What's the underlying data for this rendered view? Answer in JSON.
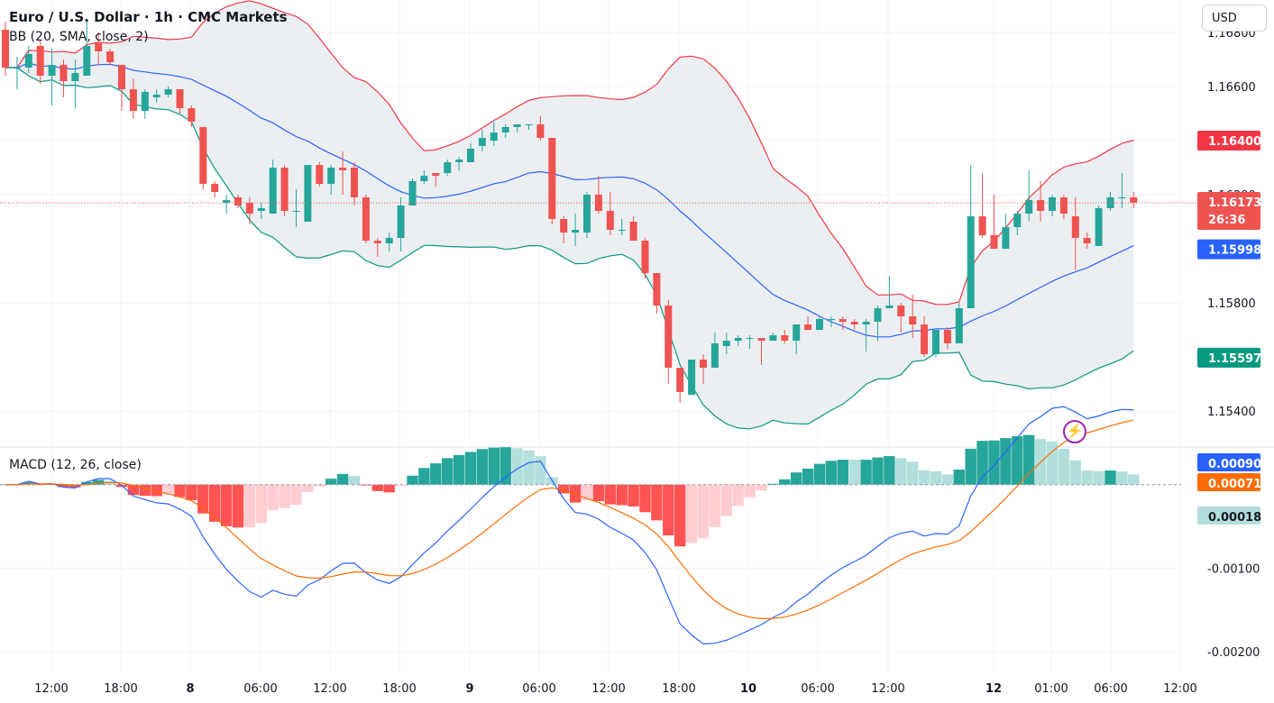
{
  "header": {
    "title": "Euro / U.S. Dollar · 1h · CMC Markets",
    "bb_label": "BB (20, SMA, close, 2)",
    "macd_label": "MACD (12, 26, close)"
  },
  "currency_button": "USD",
  "alert_icon": "bolt-icon",
  "colors": {
    "up": "#26a69a",
    "down": "#ef5350",
    "bb_upper": "#f23645",
    "bb_basis": "#2962ff",
    "bb_lower": "#089981",
    "bb_fill": "#e3e8ec",
    "macd_line": "#2962ff",
    "signal_line": "#ff6d00",
    "hist_pos_strong": "#26a69a",
    "hist_pos_weak": "#b2dfdb",
    "hist_neg_strong": "#ff5252",
    "hist_neg_weak": "#ffcdd2"
  },
  "chart_data": [
    {
      "type": "candlestick",
      "title": "Euro / U.S. Dollar · 1h · CMC Markets",
      "y_ticks": [
        "1.16800",
        "1.16600",
        "1.16400",
        "1.16200",
        "1.15800",
        "1.15400"
      ],
      "ylim": [
        1.1527,
        1.1692
      ],
      "x_ticks": [
        "12:00",
        "18:00",
        "8",
        "06:00",
        "12:00",
        "18:00",
        "9",
        "06:00",
        "12:00",
        "18:00",
        "10",
        "06:00",
        "12:00",
        "12",
        "01:00",
        "06:00",
        "12:00"
      ],
      "last_price": "1.16173",
      "countdown": "26:36",
      "price_labels": {
        "bb_upper": "1.16400",
        "bb_basis": "1.15998",
        "bb_lower": "1.15597"
      },
      "candles": [
        [
          1.1681,
          1.1684,
          1.1664,
          1.1667
        ],
        [
          1.1667,
          1.1671,
          1.1659,
          1.1667
        ],
        [
          1.1667,
          1.1675,
          1.1665,
          1.1672
        ],
        [
          1.1675,
          1.1677,
          1.1661,
          1.1664
        ],
        [
          1.1664,
          1.1674,
          1.1653,
          1.1668
        ],
        [
          1.1668,
          1.167,
          1.1656,
          1.1662
        ],
        [
          1.1662,
          1.167,
          1.1652,
          1.1665
        ],
        [
          1.1664,
          1.1684,
          1.1664,
          1.1675
        ],
        [
          1.1676,
          1.168,
          1.1668,
          1.1673
        ],
        [
          1.1673,
          1.1674,
          1.1668,
          1.1669
        ],
        [
          1.1668,
          1.1668,
          1.1651,
          1.1659
        ],
        [
          1.1659,
          1.1663,
          1.1648,
          1.1651
        ],
        [
          1.1651,
          1.1659,
          1.1648,
          1.1658
        ],
        [
          1.1656,
          1.1659,
          1.1654,
          1.1657
        ],
        [
          1.1657,
          1.166,
          1.1656,
          1.1659
        ],
        [
          1.1659,
          1.1659,
          1.165,
          1.1652
        ],
        [
          1.1652,
          1.1653,
          1.1645,
          1.1647
        ],
        [
          1.1645,
          1.1645,
          1.1622,
          1.1624
        ],
        [
          1.1624,
          1.1625,
          1.1619,
          1.1621
        ],
        [
          1.1617,
          1.162,
          1.1613,
          1.1618
        ],
        [
          1.1619,
          1.162,
          1.1615,
          1.1616
        ],
        [
          1.1617,
          1.1619,
          1.1609,
          1.1613
        ],
        [
          1.1614,
          1.1617,
          1.1611,
          1.1615
        ],
        [
          1.1613,
          1.1633,
          1.1613,
          1.163
        ],
        [
          1.163,
          1.1631,
          1.1612,
          1.1614
        ],
        [
          1.1614,
          1.1622,
          1.1608,
          1.1614
        ],
        [
          1.161,
          1.1631,
          1.161,
          1.1631
        ],
        [
          1.1631,
          1.1632,
          1.1623,
          1.1624
        ],
        [
          1.1624,
          1.1631,
          1.162,
          1.163
        ],
        [
          1.163,
          1.1636,
          1.162,
          1.1629
        ],
        [
          1.163,
          1.1632,
          1.1616,
          1.1619
        ],
        [
          1.1619,
          1.162,
          1.1602,
          1.1603
        ],
        [
          1.1603,
          1.1604,
          1.1597,
          1.1602
        ],
        [
          1.1602,
          1.1606,
          1.1599,
          1.1604
        ],
        [
          1.1604,
          1.1619,
          1.1599,
          1.1616
        ],
        [
          1.1616,
          1.1626,
          1.1616,
          1.1625
        ],
        [
          1.1625,
          1.1629,
          1.1624,
          1.1627
        ],
        [
          1.1628,
          1.1628,
          1.1623,
          1.1627
        ],
        [
          1.1628,
          1.1633,
          1.1627,
          1.1632
        ],
        [
          1.1632,
          1.1634,
          1.1629,
          1.1633
        ],
        [
          1.1632,
          1.1639,
          1.1632,
          1.1637
        ],
        [
          1.1638,
          1.1644,
          1.1636,
          1.1641
        ],
        [
          1.164,
          1.1647,
          1.1638,
          1.1643
        ],
        [
          1.1643,
          1.1646,
          1.1641,
          1.1645
        ],
        [
          1.1645,
          1.1646,
          1.1643,
          1.1646
        ],
        [
          1.1646,
          1.1646,
          1.1644,
          1.1646
        ],
        [
          1.1646,
          1.1649,
          1.164,
          1.1641
        ],
        [
          1.1641,
          1.1641,
          1.1609,
          1.1611
        ],
        [
          1.1611,
          1.1612,
          1.1602,
          1.1606
        ],
        [
          1.1606,
          1.1613,
          1.1601,
          1.1607
        ],
        [
          1.1606,
          1.1621,
          1.1604,
          1.162
        ],
        [
          1.162,
          1.1627,
          1.1613,
          1.1614
        ],
        [
          1.1614,
          1.1621,
          1.1605,
          1.1607
        ],
        [
          1.1607,
          1.1611,
          1.1605,
          1.1607
        ],
        [
          1.161,
          1.1612,
          1.1603,
          1.1603
        ],
        [
          1.1603,
          1.1604,
          1.1589,
          1.1591
        ],
        [
          1.1591,
          1.1591,
          1.1576,
          1.1579
        ],
        [
          1.1579,
          1.1581,
          1.155,
          1.1556
        ],
        [
          1.1556,
          1.1556,
          1.1543,
          1.1547
        ],
        [
          1.1546,
          1.1559,
          1.1546,
          1.1559
        ],
        [
          1.1559,
          1.1561,
          1.155,
          1.1556
        ],
        [
          1.1556,
          1.1569,
          1.1556,
          1.1565
        ],
        [
          1.1564,
          1.1569,
          1.1561,
          1.1566
        ],
        [
          1.1566,
          1.1568,
          1.1564,
          1.1567
        ],
        [
          1.1567,
          1.1568,
          1.1563,
          1.1567
        ],
        [
          1.1567,
          1.1567,
          1.1557,
          1.1566
        ],
        [
          1.1566,
          1.1569,
          1.1566,
          1.1568
        ],
        [
          1.1568,
          1.157,
          1.1565,
          1.1566
        ],
        [
          1.1566,
          1.1572,
          1.1561,
          1.1572
        ],
        [
          1.1572,
          1.1575,
          1.157,
          1.157
        ],
        [
          1.157,
          1.1575,
          1.157,
          1.1574
        ],
        [
          1.1574,
          1.1575,
          1.1571,
          1.1574
        ],
        [
          1.1574,
          1.1575,
          1.157,
          1.1573
        ],
        [
          1.1573,
          1.1574,
          1.157,
          1.1572
        ],
        [
          1.1572,
          1.1574,
          1.1562,
          1.1573
        ],
        [
          1.1573,
          1.1579,
          1.1566,
          1.1578
        ],
        [
          1.1578,
          1.159,
          1.1578,
          1.1579
        ],
        [
          1.1579,
          1.158,
          1.1569,
          1.1575
        ],
        [
          1.1575,
          1.1583,
          1.1567,
          1.1572
        ],
        [
          1.1572,
          1.1575,
          1.156,
          1.1561
        ],
        [
          1.1561,
          1.157,
          1.156,
          1.157
        ],
        [
          1.157,
          1.1571,
          1.1563,
          1.1565
        ],
        [
          1.1565,
          1.158,
          1.1565,
          1.1578
        ],
        [
          1.1578,
          1.1631,
          1.1578,
          1.1612
        ],
        [
          1.1612,
          1.1628,
          1.1604,
          1.1605
        ],
        [
          1.1605,
          1.162,
          1.1601,
          1.16
        ],
        [
          1.16,
          1.1613,
          1.16,
          1.1608
        ],
        [
          1.1608,
          1.1614,
          1.1605,
          1.1613
        ],
        [
          1.1613,
          1.1629,
          1.161,
          1.1618
        ],
        [
          1.1618,
          1.1625,
          1.161,
          1.1614
        ],
        [
          1.1614,
          1.162,
          1.1612,
          1.1619
        ],
        [
          1.1619,
          1.162,
          1.1611,
          1.1613
        ],
        [
          1.1612,
          1.1619,
          1.1592,
          1.1604
        ],
        [
          1.1604,
          1.1606,
          1.16,
          1.1602
        ],
        [
          1.1601,
          1.1616,
          1.1601,
          1.1615
        ],
        [
          1.1615,
          1.1621,
          1.1614,
          1.1619
        ],
        [
          1.1619,
          1.1628,
          1.1615,
          1.1619
        ],
        [
          1.1619,
          1.1621,
          1.1615,
          1.1617
        ]
      ]
    },
    {
      "type": "macd",
      "title": "MACD (12, 26, close)",
      "y_ticks": [
        "0.00000",
        "-0.00100",
        "-0.00200"
      ],
      "ylim": [
        -0.00224,
        0.00044
      ],
      "value_labels": {
        "macd": "0.00090",
        "signal": "0.00071",
        "histogram": "0.00018"
      }
    }
  ]
}
